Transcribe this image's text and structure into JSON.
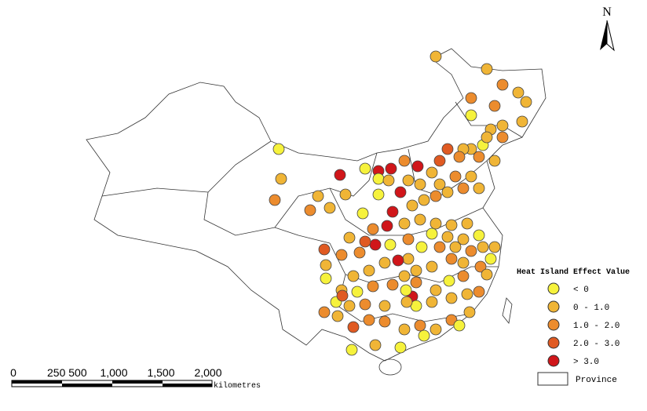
{
  "north": "N",
  "legend": {
    "title": "Heat Island Effect Value",
    "items": [
      {
        "label": "< 0",
        "color": "#f6f23c"
      },
      {
        "label": "0 - 1.0",
        "color": "#f0b536"
      },
      {
        "label": "1.0 - 2.0",
        "color": "#ec8c2e"
      },
      {
        "label": "2.0 - 3.0",
        "color": "#e05a22"
      },
      {
        "label": "> 3.0",
        "color": "#d0161a"
      }
    ],
    "province": "Province"
  },
  "scale_bar": {
    "labels": [
      "0",
      "250 500",
      "1,000",
      "1,500",
      "2,000"
    ],
    "unit": "kilometres"
  }
}
